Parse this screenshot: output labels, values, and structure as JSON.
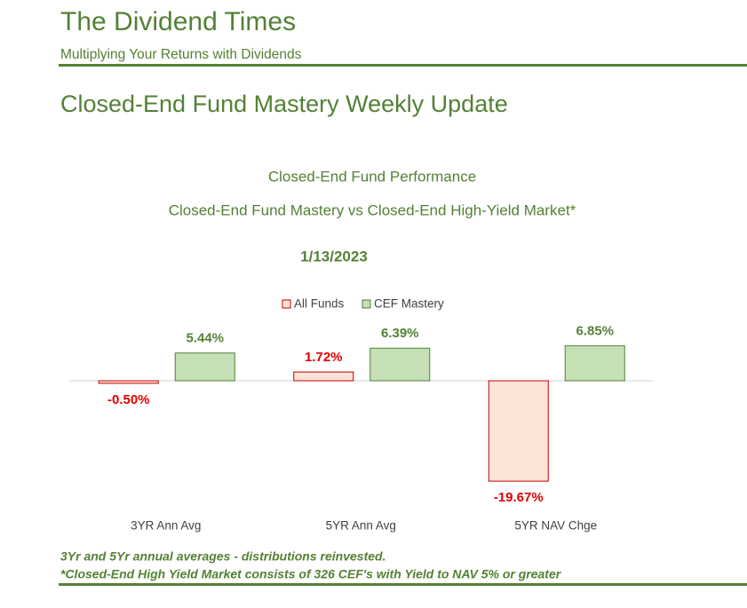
{
  "header": {
    "title": "The Dividend Times",
    "subtitle": "Multiplying Your Returns with Dividends"
  },
  "heading": "Closed-End Fund Mastery Weekly Update",
  "chart_data": {
    "type": "bar",
    "title": "Closed-End Fund Performance",
    "subtitle": "Closed-End Fund Mastery vs Closed-End High-Yield Market*",
    "date": "1/13/2023",
    "categories": [
      "3YR Ann Avg",
      "5YR Ann Avg",
      "5YR NAV Chge"
    ],
    "series": [
      {
        "name": "All Funds",
        "color": "#fbe3d6",
        "stroke": "#c00000",
        "label_color": "#e00000",
        "values": [
          -0.5,
          1.72,
          -19.67
        ],
        "value_labels": [
          "-0.50%",
          "1.72%",
          "-19.67%"
        ]
      },
      {
        "name": "CEF Mastery",
        "color": "#c5e0b4",
        "stroke": "#538135",
        "label_color": "#538135",
        "values": [
          5.44,
          6.39,
          6.85
        ],
        "value_labels": [
          "5.44%",
          "6.39%",
          "6.85%"
        ]
      }
    ]
  },
  "footnotes": [
    "3Yr and 5Yr annual averages - distributions reinvested.",
    "*Closed-End High Yield Market consists of 326 CEF's with Yield to NAV 5% or greater"
  ]
}
